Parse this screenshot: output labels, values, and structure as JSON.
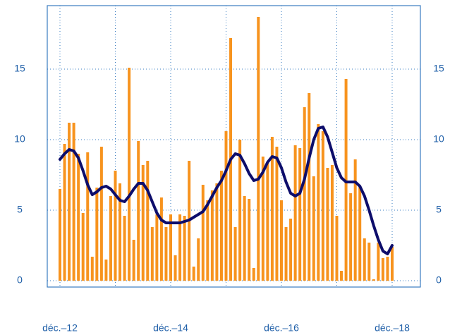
{
  "chart_data": {
    "type": "bar",
    "categories": [
      "déc.–12",
      null,
      null,
      null,
      null,
      null,
      null,
      null,
      null,
      null,
      null,
      null,
      null,
      null,
      null,
      null,
      null,
      null,
      null,
      null,
      null,
      null,
      null,
      null,
      "déc.–14",
      null,
      null,
      null,
      null,
      null,
      null,
      null,
      null,
      null,
      null,
      null,
      null,
      null,
      null,
      null,
      null,
      null,
      null,
      null,
      null,
      null,
      null,
      null,
      "déc.–16",
      null,
      null,
      null,
      null,
      null,
      null,
      null,
      null,
      null,
      null,
      null,
      null,
      null,
      null,
      null,
      null,
      null,
      null,
      null,
      null,
      null,
      null,
      null,
      "déc.–18"
    ],
    "series": [
      {
        "type": "bar",
        "color": "#f7931e",
        "values": [
          6.5,
          9.7,
          11.2,
          11.2,
          9.0,
          4.8,
          9.1,
          1.7,
          6.6,
          9.5,
          1.5,
          6.0,
          7.8,
          6.9,
          4.6,
          15.1,
          2.9,
          9.9,
          8.2,
          8.5,
          3.8,
          4.7,
          5.9,
          3.8,
          4.7,
          1.8,
          4.7,
          4.6,
          8.5,
          1.0,
          3.0,
          6.8,
          5.7,
          6.4,
          6.9,
          7.8,
          10.6,
          17.2,
          3.8,
          10.0,
          6.0,
          5.8,
          0.9,
          18.7,
          8.8,
          8.4,
          10.2,
          9.5,
          5.7,
          3.8,
          4.4,
          9.6,
          9.4,
          12.3,
          13.3,
          7.4,
          11.1,
          10.6,
          8.0,
          8.2,
          4.6,
          0.7,
          14.3,
          6.2,
          8.6,
          6.7,
          3.0,
          2.7,
          0.1,
          2.7,
          1.6,
          1.7,
          2.4
        ]
      },
      {
        "type": "line",
        "color": "#0d0d6b",
        "values": [
          8.6,
          9.0,
          9.3,
          9.2,
          8.7,
          7.8,
          6.8,
          6.1,
          6.3,
          6.6,
          6.7,
          6.5,
          6.1,
          5.7,
          5.6,
          6.0,
          6.5,
          6.9,
          6.9,
          6.4,
          5.6,
          4.8,
          4.3,
          4.1,
          4.1,
          4.1,
          4.1,
          4.2,
          4.3,
          4.5,
          4.7,
          4.9,
          5.4,
          6.0,
          6.6,
          7.1,
          7.8,
          8.6,
          9.0,
          8.9,
          8.3,
          7.6,
          7.1,
          7.2,
          7.7,
          8.4,
          8.8,
          8.7,
          8.0,
          7.0,
          6.2,
          6.0,
          6.2,
          7.2,
          8.7,
          10.0,
          10.8,
          10.9,
          10.2,
          9.1,
          8.0,
          7.3,
          7.0,
          7.0,
          7.0,
          6.7,
          6.0,
          5.0,
          3.9,
          2.9,
          2.1,
          1.9,
          2.5
        ]
      }
    ],
    "ylim": [
      -0.45,
      19.5
    ],
    "yticks": [
      0,
      5,
      10,
      15
    ],
    "y2lim": [
      -0.45,
      19.5
    ],
    "y2ticks": [
      0,
      5,
      10,
      15
    ],
    "grid": true
  }
}
